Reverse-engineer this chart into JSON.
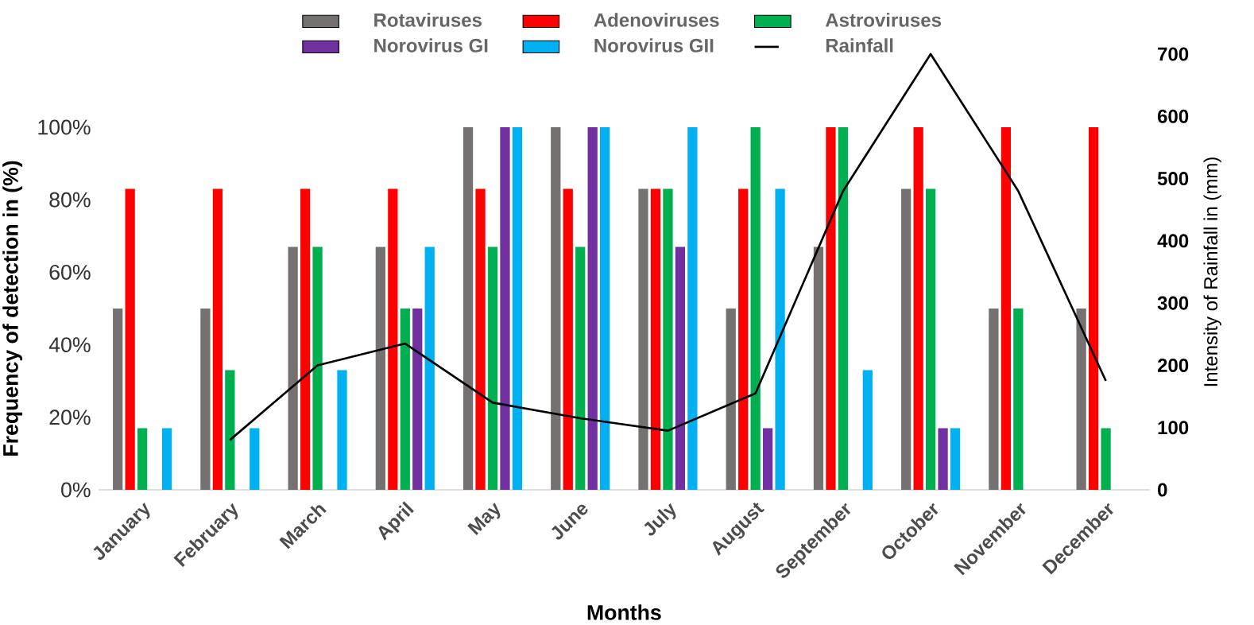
{
  "chart_data": {
    "type": "bar",
    "xlabel": "Months",
    "ylabel": "Frequency of detection in (%)",
    "y2label": "Intensity of Rainfall in (mm)",
    "categories": [
      "January",
      "February",
      "March",
      "April",
      "May",
      "June",
      "July",
      "August",
      "September",
      "October",
      "November",
      "December"
    ],
    "series": [
      {
        "name": "Rotaviruses",
        "color": "#767171",
        "values": [
          50,
          50,
          67,
          67,
          100,
          100,
          83,
          50,
          67,
          83,
          50,
          50
        ]
      },
      {
        "name": "Adenoviruses",
        "color": "#ff0000",
        "values": [
          83,
          83,
          83,
          83,
          83,
          83,
          83,
          83,
          100,
          100,
          100,
          100
        ]
      },
      {
        "name": "Astroviruses",
        "color": "#00b050",
        "values": [
          17,
          33,
          67,
          50,
          67,
          67,
          83,
          100,
          100,
          83,
          50,
          17
        ]
      },
      {
        "name": "Norovirus GI",
        "color": "#7030a0",
        "values": [
          0,
          0,
          0,
          50,
          100,
          100,
          67,
          17,
          0,
          17,
          0,
          0
        ]
      },
      {
        "name": "Norovirus GII",
        "color": "#00b0f0",
        "values": [
          17,
          17,
          33,
          67,
          100,
          100,
          100,
          83,
          33,
          17,
          0,
          0
        ]
      },
      {
        "name": "Rainfall",
        "type": "line",
        "axis": "y2",
        "color": "#000000",
        "values": [
          null,
          80,
          200,
          235,
          140,
          115,
          95,
          155,
          480,
          700,
          480,
          175
        ]
      }
    ],
    "ylim": [
      0,
      100
    ],
    "yticks": [
      {
        "value": 0,
        "label": "0%"
      },
      {
        "value": 20,
        "label": "20%"
      },
      {
        "value": 40,
        "label": "40%"
      },
      {
        "value": 60,
        "label": "60%"
      },
      {
        "value": 80,
        "label": "80%"
      },
      {
        "value": 100,
        "label": "100%"
      }
    ],
    "y2lim": [
      0,
      700
    ],
    "y2ticks": [
      0,
      100,
      200,
      300,
      400,
      500,
      600,
      700
    ],
    "legend": "top"
  }
}
